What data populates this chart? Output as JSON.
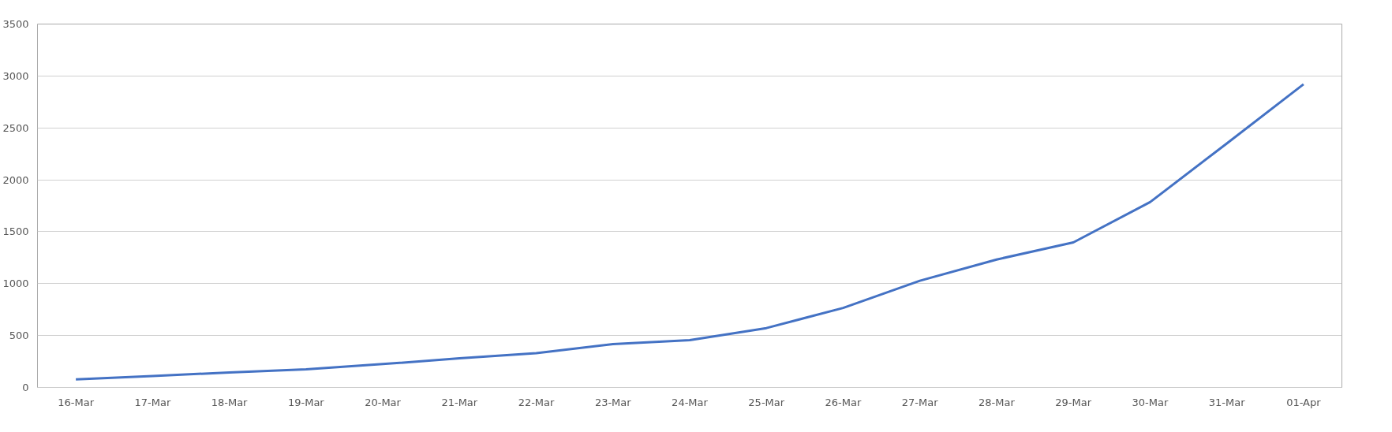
{
  "chart_data": {
    "type": "line",
    "categories": [
      "16-Mar",
      "17-Mar",
      "18-Mar",
      "19-Mar",
      "20-Mar",
      "21-Mar",
      "22-Mar",
      "23-Mar",
      "24-Mar",
      "25-Mar",
      "26-Mar",
      "27-Mar",
      "28-Mar",
      "29-Mar",
      "30-Mar",
      "31-Mar",
      "01-Apr"
    ],
    "series": [
      {
        "color": "#4472c4",
        "values": [
          78,
          110,
          145,
          175,
          225,
          280,
          330,
          417,
          456,
          572,
          766,
          1028,
          1232,
          1397,
          1785,
          2350,
          2920
        ]
      }
    ],
    "ylim": [
      0,
      3500
    ],
    "yticks": [
      0,
      500,
      1000,
      1500,
      2000,
      2500,
      3000,
      3500
    ],
    "grid": "y",
    "marker": "none",
    "line_style": "solid"
  }
}
